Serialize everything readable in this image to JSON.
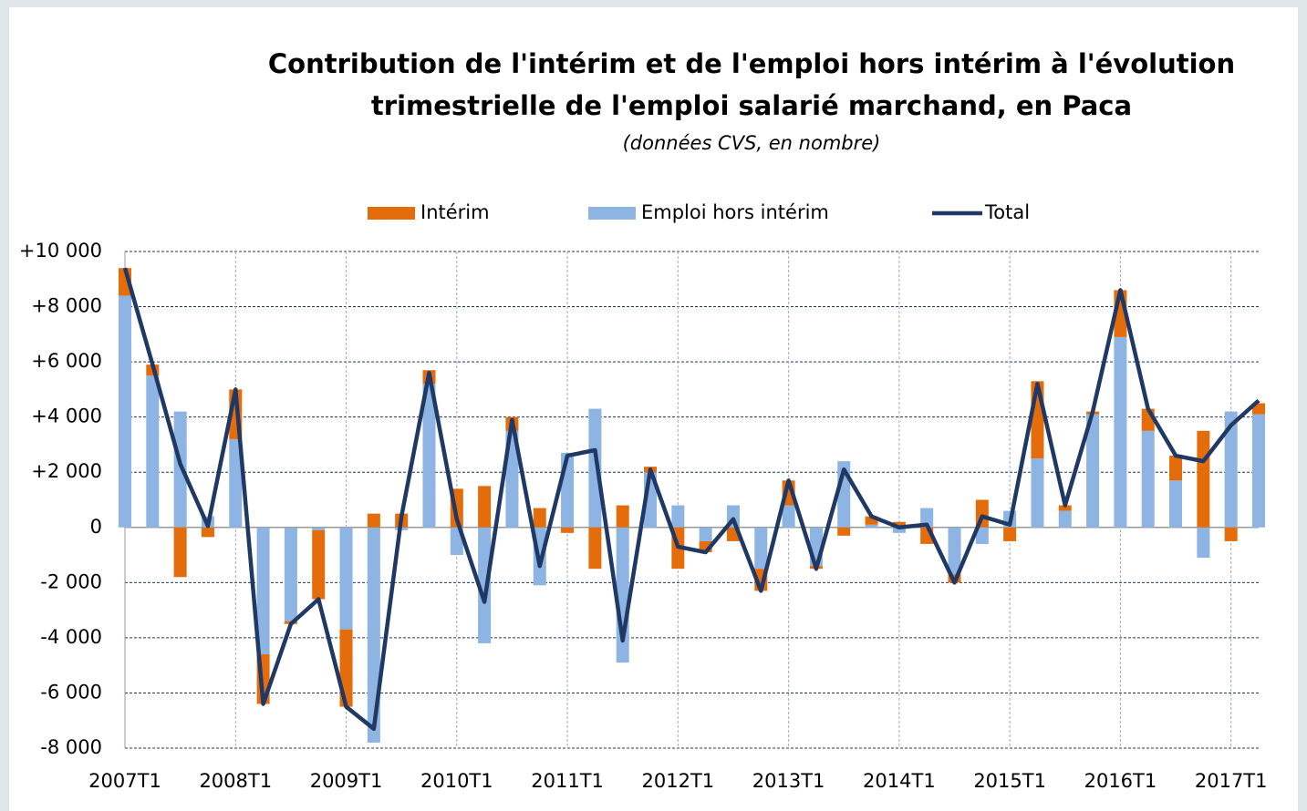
{
  "chart_data": {
    "type": "bar",
    "stacked": true,
    "title": [
      "Contribution de l'intérim et de l'emploi hors intérim à l'évolution",
      "trimestrielle de l'emploi salarié marchand,  en Paca"
    ],
    "subtitle": "(données CVS, en nombre)",
    "categories": [
      "2007T1",
      null,
      null,
      null,
      "2008T1",
      null,
      null,
      null,
      "2009T1",
      null,
      null,
      null,
      "2010T1",
      null,
      null,
      null,
      "2011T1",
      null,
      null,
      null,
      "2012T1",
      null,
      null,
      null,
      "2013T1",
      null,
      null,
      null,
      "2014T1",
      null,
      null,
      null,
      "2015T1",
      null,
      null,
      null,
      "2016T1",
      null,
      null,
      null,
      "2017T1",
      null
    ],
    "series": [
      {
        "name": "Emploi hors intérim",
        "color": "#8db4e2",
        "values": [
          8400,
          5500,
          4200,
          400,
          3200,
          -4600,
          -3400,
          -100,
          -3700,
          -7800,
          -100,
          5200,
          -1000,
          -4200,
          3500,
          -2100,
          2700,
          4300,
          -4900,
          2000,
          800,
          -500,
          800,
          -1500,
          800,
          -1400,
          2400,
          100,
          -200,
          700,
          -1700,
          -600,
          600,
          2500,
          600,
          4100,
          6900,
          3500,
          1700,
          -1100,
          4200,
          4100
        ]
      },
      {
        "name": "Intérim",
        "color": "#e46c0a",
        "values": [
          1000,
          400,
          -1800,
          -350,
          1800,
          -1800,
          -100,
          -2500,
          -2800,
          500,
          500,
          500,
          1400,
          1500,
          500,
          700,
          -200,
          -1500,
          800,
          200,
          -1500,
          -400,
          -500,
          -800,
          900,
          -100,
          -300,
          300,
          200,
          -600,
          -300,
          1000,
          -500,
          2800,
          200,
          100,
          1700,
          800,
          900,
          3500,
          -500,
          400
        ]
      },
      {
        "name": "Total",
        "type": "line",
        "color": "#1f3864",
        "values": [
          9400,
          5900,
          2300,
          50,
          5000,
          -6400,
          -3500,
          -2600,
          -6500,
          -7300,
          400,
          5600,
          300,
          -2700,
          3900,
          -1400,
          2600,
          2800,
          -4100,
          2100,
          -700,
          -900,
          300,
          -2300,
          1700,
          -1500,
          2100,
          400,
          0,
          100,
          -2000,
          400,
          100,
          5200,
          800,
          4200,
          8600,
          4300,
          2600,
          2400,
          3700,
          4600
        ]
      }
    ],
    "legend_order": [
      1,
      0,
      2
    ],
    "ylim": [
      -8000,
      10000
    ],
    "yticks": [
      {
        "value": -8000,
        "label": "-8 000"
      },
      {
        "value": -6000,
        "label": "-6 000"
      },
      {
        "value": -4000,
        "label": "-4 000"
      },
      {
        "value": -2000,
        "label": "-2 000"
      },
      0,
      {
        "value": 2000,
        "label": "+2 000"
      },
      {
        "value": 4000,
        "label": "+4 000"
      },
      {
        "value": 6000,
        "label": "+6 000"
      },
      {
        "value": 8000,
        "label": "+8 000"
      },
      {
        "value": 10000,
        "label": "+10 000"
      }
    ],
    "grid": true,
    "legend": "top"
  }
}
